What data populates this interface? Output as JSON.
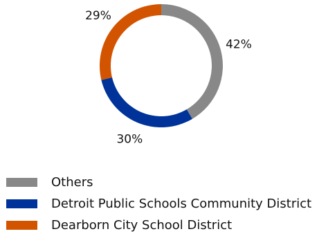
{
  "chart_data": {
    "type": "donut",
    "series": [
      {
        "name": "Others",
        "value": 42,
        "label": "42%",
        "color": "#888888"
      },
      {
        "name": "Detroit Public Schools Community District",
        "value": 30,
        "label": "30%",
        "color": "#003399"
      },
      {
        "name": "Dearborn City School District",
        "value": 29,
        "label": "29%",
        "color": "#D35400"
      }
    ],
    "legend_position": "bottom-left"
  }
}
